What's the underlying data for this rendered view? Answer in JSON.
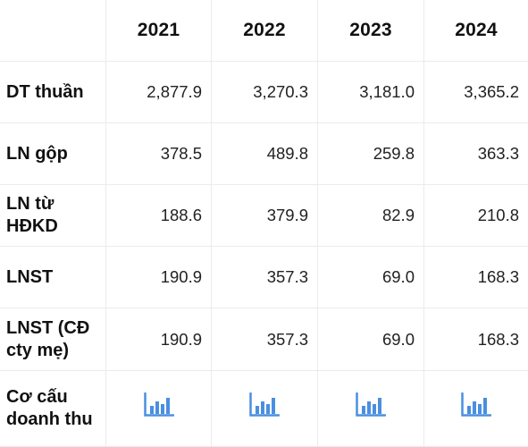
{
  "columns": [
    "2021",
    "2022",
    "2023",
    "2024"
  ],
  "rows": [
    {
      "label_lines": [
        "DT thuần"
      ],
      "values": [
        "2,877.9",
        "3,270.3",
        "3,181.0",
        "3,365.2"
      ]
    },
    {
      "label_lines": [
        "LN gộp"
      ],
      "values": [
        "378.5",
        "489.8",
        "259.8",
        "363.3"
      ]
    },
    {
      "label_lines": [
        "LN từ",
        "HĐKD"
      ],
      "values": [
        "188.6",
        "379.9",
        "82.9",
        "210.8"
      ]
    },
    {
      "label_lines": [
        "LNST"
      ],
      "values": [
        "190.9",
        "357.3",
        "69.0",
        "168.3"
      ]
    },
    {
      "label_lines": [
        "LNST (CĐ",
        "cty mẹ)"
      ],
      "values": [
        "190.9",
        "357.3",
        "69.0",
        "168.3"
      ]
    }
  ],
  "structure_row": {
    "label_lines": [
      "Cơ cấu",
      "doanh thu"
    ],
    "icon": "bar-chart-icon"
  },
  "colors": {
    "icon_blue": "#4a8fe0",
    "grid_line": "#ebebeb"
  }
}
